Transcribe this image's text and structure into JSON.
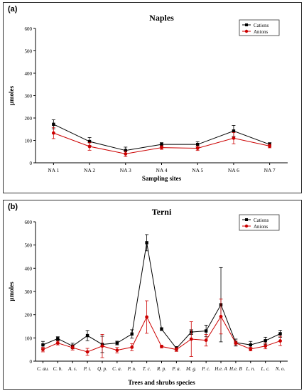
{
  "chart_data": [
    {
      "panel_label": "(a)",
      "type": "line",
      "title": "Naples",
      "xlabel": "Sampling sites",
      "ylabel": "µmoles",
      "ylim": [
        0,
        600
      ],
      "yticks": [
        0,
        100,
        200,
        300,
        400,
        500,
        600
      ],
      "grid": false,
      "legend_position": "top-right",
      "categories": [
        "NA 1",
        "NA 2",
        "NA 3",
        "NA 4",
        "NA 5",
        "NA 6",
        "NA 7"
      ],
      "series": [
        {
          "name": "Cations",
          "color": "#000000",
          "marker": "square",
          "values": [
            172,
            95,
            55,
            82,
            82,
            142,
            82
          ],
          "errors": [
            20,
            18,
            15,
            8,
            12,
            25,
            8
          ]
        },
        {
          "name": "Anions",
          "color": "#cc0000",
          "marker": "circle",
          "values": [
            133,
            73,
            40,
            68,
            65,
            110,
            75
          ],
          "errors": [
            25,
            17,
            12,
            8,
            10,
            25,
            8
          ]
        }
      ]
    },
    {
      "panel_label": "(b)",
      "type": "line",
      "title": "Terni",
      "xlabel": "Trees and shrubs species",
      "ylabel": "µmoles",
      "ylim": [
        0,
        600
      ],
      "yticks": [
        0,
        100,
        200,
        300,
        400,
        500,
        600
      ],
      "grid": false,
      "legend_position": "top-right",
      "categories": [
        "C. au.",
        "C. b.",
        "A. s.",
        "P. t.",
        "Q. p.",
        "C. a.",
        "P. n.",
        "T. c.",
        "R. p.",
        "P. a.",
        "M. g.",
        "P. c.",
        "H.e. A",
        "H.e. B",
        "L. n.",
        "L. c.",
        "N. o."
      ],
      "series": [
        {
          "name": "Cations",
          "color": "#000000",
          "marker": "square",
          "values": [
            70,
            97,
            65,
            110,
            72,
            78,
            117,
            510,
            138,
            55,
            125,
            130,
            243,
            80,
            70,
            88,
            118
          ],
          "errors": [
            15,
            8,
            12,
            22,
            35,
            8,
            18,
            35,
            6,
            8,
            10,
            25,
            160,
            15,
            15,
            15,
            15
          ]
        },
        {
          "name": "Anions",
          "color": "#cc0000",
          "marker": "circle",
          "values": [
            50,
            78,
            58,
            40,
            65,
            47,
            60,
            190,
            63,
            50,
            95,
            90,
            192,
            78,
            52,
            65,
            87
          ],
          "errors": [
            10,
            8,
            10,
            15,
            50,
            12,
            15,
            70,
            6,
            8,
            75,
            25,
            75,
            8,
            8,
            12,
            20
          ]
        }
      ]
    }
  ]
}
